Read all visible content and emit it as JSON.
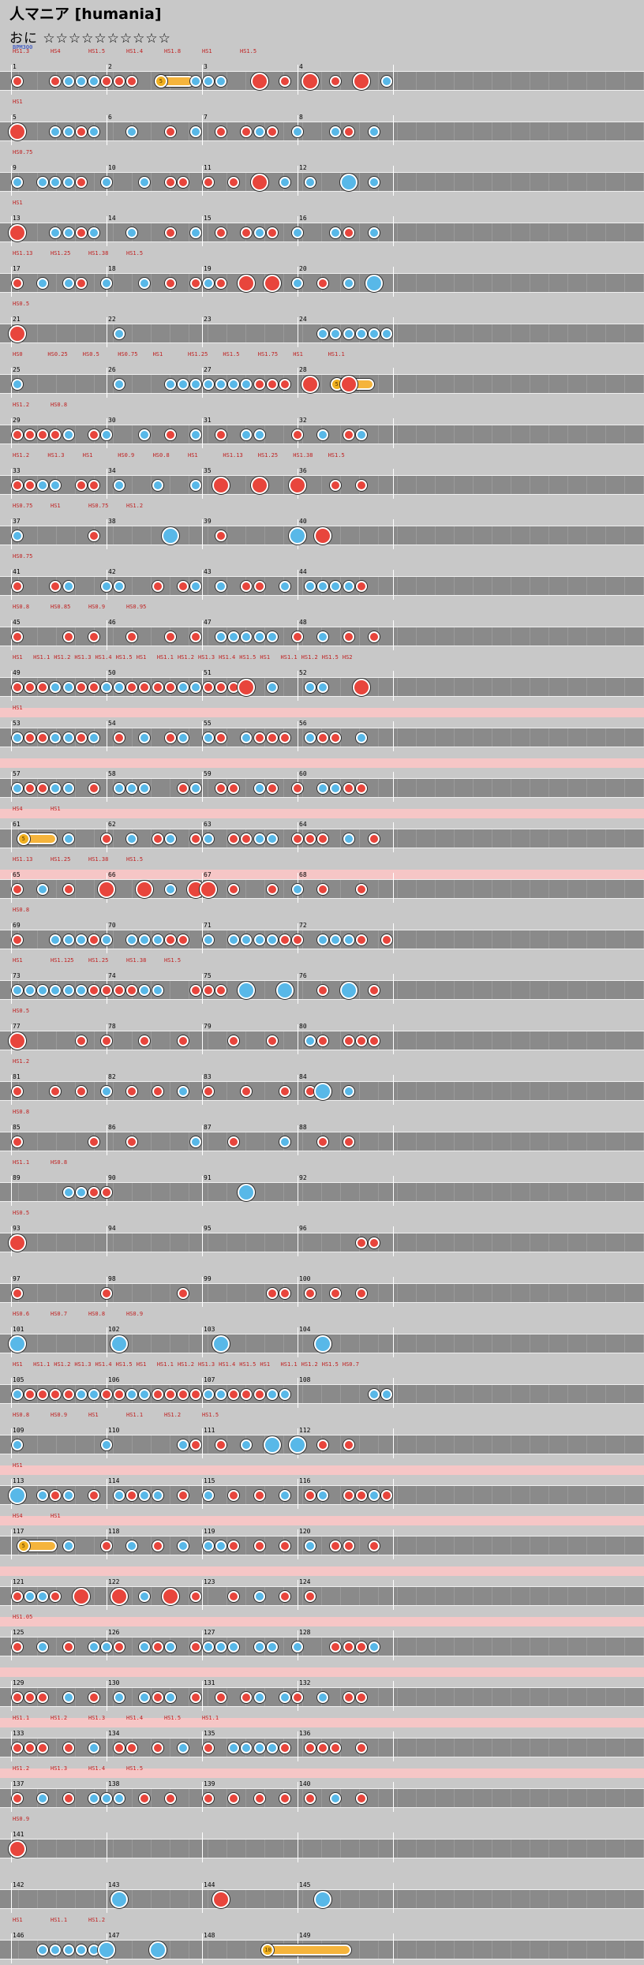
{
  "song": {
    "title": "人マニア [humania]",
    "difficulty": "おに",
    "stars": "☆☆☆☆☆☆☆☆☆☆"
  },
  "bpm_label": "BPM300",
  "colors": {
    "don": "#e8453c",
    "ka": "#58b8e8",
    "roll": "#f5b43c",
    "gogo_band": "#f6c6c6",
    "lane": "#8a8a8a"
  },
  "rows": [
    {
      "m": [
        1,
        2,
        3,
        4
      ],
      "sc": [
        "HS1.3",
        "HS4",
        "HS1.5",
        "HS1.4",
        "HS1.8",
        "HS1",
        "HS1.5"
      ],
      "bpm": "BPM300",
      "notes": "d..dkkkddd....kkk..D.d.D.d.D.k",
      "roll": [
        0.38,
        0.48,
        "5"
      ]
    },
    {
      "m": [
        5,
        6,
        7,
        8
      ],
      "sc": [
        "HS1"
      ],
      "notes": "D..kkdk..k..d.k.d.dkd.k..kd.k"
    },
    {
      "m": [
        9,
        10,
        11,
        12
      ],
      "sc": [
        "HS0.75"
      ],
      "notes": "k.kkkd.k..k.dd.d.d.D.k.k..K.k"
    },
    {
      "m": [
        13,
        14,
        15,
        16
      ],
      "sc": [
        "HS1"
      ],
      "notes": "D..kkdk..k..d.k.d.dkd.k..kd.k"
    },
    {
      "m": [
        17,
        18,
        19,
        20
      ],
      "sc": [
        "HS1.13",
        "HS1.25",
        "HS1.38",
        "HS1.5"
      ],
      "notes": "d.k.kd.k..k.d.dkd.D.D.k.d.k.K"
    },
    {
      "m": [
        21,
        22,
        23,
        24
      ],
      "sc": [
        "HS0.5"
      ],
      "notes": "D.......k...............kkkkkk"
    },
    {
      "m": [
        25,
        26,
        27,
        28
      ],
      "sc": [
        "HS0",
        "HS0.25",
        "HS0.5",
        "HS0.75",
        "HS1",
        "HS1.25",
        "HS1.5",
        "HS1.75",
        "HS1",
        "HS1.1"
      ],
      "notes": "k.......k...kkkkkkkddd.D..D",
      "roll": [
        0.84,
        0.95,
        "5"
      ]
    },
    {
      "m": [
        29,
        30,
        31,
        32
      ],
      "sc": [
        "HS1.2",
        "HS0.8"
      ],
      "notes": "ddddk.dk..k.d.k.d.kk..d.k.dk"
    },
    {
      "m": [
        33,
        34,
        35,
        36
      ],
      "sc": [
        "HS1.2",
        "HS1.3",
        "HS1",
        "HS0.9",
        "HS0.8",
        "HS1",
        "HS1.13",
        "HS1.25",
        "HS1.38",
        "HS1.5"
      ],
      "notes": "ddkk.dd.k..k..k.D..D..D..d.d"
    },
    {
      "m": [
        37,
        38,
        39,
        40
      ],
      "sc": [
        "HS0.75",
        "HS1",
        "HS0.75",
        "HS1.2"
      ],
      "notes": "k.....d.....K...d.....K.D"
    },
    {
      "m": [
        41,
        42,
        43,
        44
      ],
      "sc": [
        "HS0.75"
      ],
      "notes": "d..dk..kk..d.dk.k.dd.k.kkkkd"
    },
    {
      "m": [
        45,
        46,
        47,
        48
      ],
      "sc": [
        "HS0.8",
        "HS0.85",
        "HS0.9",
        "HS0.95"
      ],
      "notes": "d...d.d..d..d.d.kkkkk.d.k.d.d"
    },
    {
      "m": [
        49,
        50,
        51,
        52
      ],
      "sc": [
        "HS1",
        "HS1.1",
        "HS1.2",
        "HS1.3",
        "HS1.4",
        "HS1.5",
        "HS1",
        "HS1.1",
        "HS1.2",
        "HS1.3",
        "HS1.4",
        "HS1.5",
        "HS1",
        "HS1.1",
        "HS1.2",
        "HS1.5",
        "HS2"
      ],
      "notes": "dddkkddkkddddkkdddD.k..kk..D"
    },
    {
      "m": [
        53,
        54,
        55,
        56
      ],
      "band": "a",
      "sc": [
        "HS1"
      ],
      "notes": "kddkkdk.d.k.dk.kd.kddd.kdd.k"
    },
    {
      "m": [
        57,
        58,
        59,
        60
      ],
      "band": "a",
      "notes": "kddkk.d.kkk..dk.dd.kd.d.kkdd"
    },
    {
      "m": [
        61,
        62,
        63,
        64
      ],
      "band": "a",
      "sc": [
        "HS4",
        "HS1"
      ],
      "notes": "....k..d.k.dk.dk.ddkk.ddd.k.d",
      "roll": [
        0.02,
        0.12,
        "5"
      ]
    },
    {
      "m": [
        65,
        66,
        67,
        68
      ],
      "band": "b",
      "sc": [
        "HS1.13",
        "HS1.25",
        "HS1.38",
        "HS1.5"
      ],
      "notes": "d.k.d..D..D.k.DD.d..d.k.d..d"
    },
    {
      "m": [
        69,
        70,
        71,
        72
      ],
      "sc": [
        "HS0.8"
      ],
      "notes": "d..kkkdk.kkkdd.k.kkkkdd.kkkd.d"
    },
    {
      "m": [
        73,
        74,
        75,
        76
      ],
      "sc": [
        "HS1",
        "HS1.125",
        "HS1.25",
        "HS1.38",
        "HS1.5"
      ],
      "notes": "kkkkkkddddkk..ddd.K..K..d.K.d"
    },
    {
      "m": [
        77,
        78,
        79,
        80
      ],
      "sc": [
        "HS0.5"
      ],
      "notes": "D....d.d..d..d...d..d..kd.ddd"
    },
    {
      "m": [
        81,
        82,
        83,
        84
      ],
      "sc": [
        "HS1.2"
      ],
      "notes": "d..d.d.k.d.d.k.d..d..d.dK.k"
    },
    {
      "m": [
        85,
        86,
        87,
        88
      ],
      "sc": [
        "HS0.8"
      ],
      "notes": "d.....d..d....k..d...k..d.d"
    },
    {
      "m": [
        89,
        90,
        91,
        92
      ],
      "sc": [
        "HS1.1",
        "HS0.8"
      ],
      "notes": "....kkdd..........K"
    },
    {
      "m": [
        93,
        94,
        95,
        96
      ],
      "sc": [
        "HS0.5"
      ],
      "notes": "D..........................dd"
    },
    {
      "m": [
        97,
        98,
        99,
        100
      ],
      "notes": "d......d.....d......dd.d.d.d"
    },
    {
      "m": [
        101,
        102,
        103,
        104
      ],
      "sc": [
        "HS0.6",
        "HS0.7",
        "HS0.8",
        "HS0.9"
      ],
      "notes": "K.......K.......K.......K"
    },
    {
      "m": [
        105,
        106,
        107,
        108
      ],
      "sc": [
        "HS1",
        "HS1.1",
        "HS1.2",
        "HS1.3",
        "HS1.4",
        "HS1.5",
        "HS1",
        "HS1.1",
        "HS1.2",
        "HS1.3",
        "HS1.4",
        "HS1.5",
        "HS1",
        "HS1.1",
        "HS1.2",
        "HS1.5",
        "HS0.7"
      ],
      "notes": "kddddkkddkkddddkkdddkk......kk"
    },
    {
      "m": [
        109,
        110,
        111,
        112
      ],
      "sc": [
        "HS0.8",
        "HS0.9",
        "HS1",
        "HS1.1",
        "HS1.2",
        "HS1.5"
      ],
      "notes": "k......k.....kd.d.k.K.K.d.d"
    },
    {
      "m": [
        113,
        114,
        115,
        116
      ],
      "band": "a",
      "sc": [
        "HS1"
      ],
      "notes": "K.kdk.d.kdkk.d.k.d.d.k.dk.ddkd"
    },
    {
      "m": [
        117,
        118,
        119,
        120
      ],
      "band": "a",
      "sc": [
        "HS4",
        "HS1"
      ],
      "notes": "....k..d.k.d.k.kkd.d.d.k.dd.d",
      "roll": [
        0.02,
        0.12,
        "5"
      ]
    },
    {
      "m": [
        121,
        122,
        123,
        124
      ],
      "band": "a",
      "sc": [],
      "notes": "dkkd.D..D.k.D.d..d.k.d.d"
    },
    {
      "m": [
        125,
        126,
        127,
        128
      ],
      "band": "a",
      "sc": [
        "HS1.05"
      ],
      "notes": "d.k.d.kkd.kdk.dkkk.kk.k..dddk"
    },
    {
      "m": [
        129,
        130,
        131,
        132
      ],
      "band": "a",
      "notes": "ddd.k.d.k.kdk.d.d.dk.kd.k.dd"
    },
    {
      "m": [
        133,
        134,
        135,
        136
      ],
      "band": "a",
      "sc": [
        "HS1.1",
        "HS1.2",
        "HS1.3",
        "HS1.4",
        "HS1.5",
        "HS1.1"
      ],
      "notes": "ddd.d.k.dd.d.k.d.kkkkd.ddd.d"
    },
    {
      "m": [
        137,
        138,
        139,
        140
      ],
      "band": "a",
      "sc": [
        "HS1.2",
        "HS1.3",
        "HS1.4",
        "HS1.5"
      ],
      "notes": "d.k.d.kkk.d.d..d.d.d.d.d.k.d"
    },
    {
      "m": [
        141
      ],
      "sc": [
        "HS0.9"
      ],
      "notes": "D"
    },
    {
      "m": [
        142,
        143,
        144,
        145
      ],
      "notes": "........K.......D.......K"
    },
    {
      "m": [
        146,
        147,
        148,
        149
      ],
      "sc": [
        "HS1",
        "HS1.1",
        "HS1.2"
      ],
      "notes": "..kkkkkK...K",
      "roll": [
        0.66,
        0.89,
        "10"
      ]
    }
  ]
}
